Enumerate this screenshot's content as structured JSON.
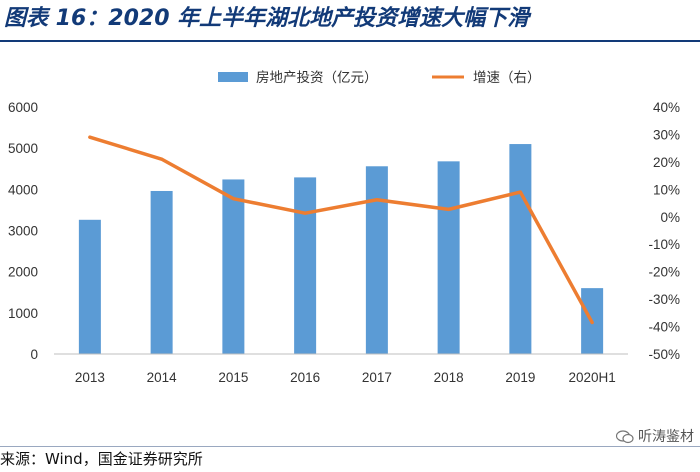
{
  "header": {
    "title": "图表 16：2020 年上半年湖北地产投资增速大幅下滑"
  },
  "footer": {
    "source": "来源：Wind，国金证券研究所",
    "watermark": "听涛鉴材"
  },
  "colors": {
    "bar": "#5b9bd5",
    "line": "#ed7d31",
    "title": "#123a78"
  },
  "chart_data": {
    "type": "bar+line",
    "categories": [
      "2013",
      "2014",
      "2015",
      "2016",
      "2017",
      "2018",
      "2019",
      "2020H1"
    ],
    "series": [
      {
        "name": "房地产投资（亿元）",
        "type": "bar",
        "axis": "left",
        "values": [
          3260,
          3960,
          4240,
          4290,
          4560,
          4680,
          5100,
          1600
        ]
      },
      {
        "name": "增速（右）",
        "type": "line",
        "axis": "right",
        "values": [
          29,
          21,
          6.6,
          1.3,
          6.2,
          2.7,
          9.0,
          -38.5
        ]
      }
    ],
    "y_left": {
      "min": 0,
      "max": 6000,
      "ticks": [
        "0",
        "1000",
        "2000",
        "3000",
        "4000",
        "5000",
        "6000"
      ]
    },
    "y_right": {
      "min": -50,
      "max": 40,
      "ticks": [
        "-50%",
        "-40%",
        "-30%",
        "-20%",
        "-10%",
        "0%",
        "10%",
        "20%",
        "30%",
        "40%"
      ]
    },
    "legend_position": "top"
  }
}
